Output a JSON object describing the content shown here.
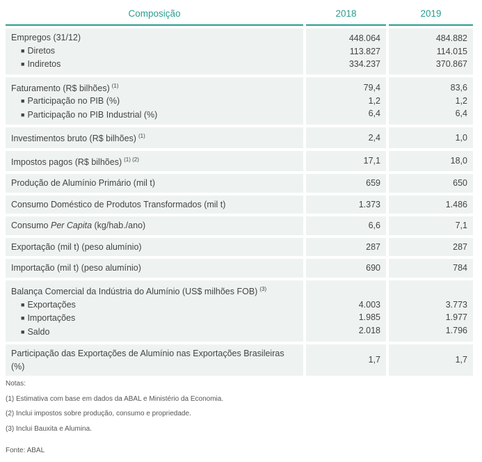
{
  "table": {
    "header": [
      "Composição",
      "2018",
      "2019"
    ],
    "rows": [
      {
        "lines": [
          {
            "label": "Empregos (31/12)",
            "values": [
              "448.064",
              "484.882"
            ]
          },
          {
            "label": "Diretos",
            "bullet": true,
            "values": [
              "113.827",
              "114.015"
            ]
          },
          {
            "label": "Indiretos",
            "bullet": true,
            "values": [
              "334.237",
              "370.867"
            ]
          }
        ]
      },
      {
        "lines": [
          {
            "label": "Faturamento (R$ bilhões)",
            "sup": "(1)",
            "values": [
              "79,4",
              "83,6"
            ]
          },
          {
            "label": "Participação no PIB (%)",
            "bullet": true,
            "values": [
              "1,2",
              "1,2"
            ]
          },
          {
            "label": "Participação no PIB Industrial (%)",
            "bullet": true,
            "values": [
              "6,4",
              "6,4"
            ]
          }
        ]
      },
      {
        "lines": [
          {
            "label": "Investimentos bruto (R$ bilhões)",
            "sup": "(1)",
            "values": [
              "2,4",
              "1,0"
            ]
          }
        ]
      },
      {
        "lines": [
          {
            "label": "Impostos pagos (R$ bilhões)",
            "sup": "(1) (2)",
            "values": [
              "17,1",
              "18,0"
            ]
          }
        ]
      },
      {
        "lines": [
          {
            "label": "Produção de Alumínio Primário (mil t)",
            "values": [
              "659",
              "650"
            ]
          }
        ]
      },
      {
        "lines": [
          {
            "label": "Consumo Doméstico de Produtos Transformados (mil t)",
            "values": [
              "1.373",
              "1.486"
            ]
          }
        ]
      },
      {
        "lines": [
          {
            "label": "Consumo ",
            "italic": "Per Capita",
            "after": " (kg/hab./ano)",
            "values": [
              "6,6",
              "7,1"
            ]
          }
        ]
      },
      {
        "lines": [
          {
            "label": "Exportação (mil t) (peso alumínio)",
            "values": [
              "287",
              "287"
            ]
          }
        ]
      },
      {
        "lines": [
          {
            "label": "Importação (mil t) (peso alumínio)",
            "values": [
              "690",
              "784"
            ]
          }
        ]
      },
      {
        "lines": [
          {
            "label": "Balança Comercial da Indústria do Alumínio (US$ milhões FOB)",
            "sup": "(3)",
            "values": null
          },
          {
            "label": "Exportações",
            "bullet": true,
            "values": [
              "4.003",
              "3.773"
            ]
          },
          {
            "label": "Importações",
            "bullet": true,
            "values": [
              "1.985",
              "1.977"
            ]
          },
          {
            "label": "Saldo",
            "bullet": true,
            "values": [
              "2.018",
              "1.796"
            ]
          }
        ]
      },
      {
        "lines": [
          {
            "label": "Participação das Exportações de Alumínio nas Exportações Brasileiras (%)",
            "values": [
              "1,7",
              "1,7"
            ]
          }
        ]
      }
    ]
  },
  "notes": {
    "title": "Notas:",
    "items": [
      "(1) Estimativa com base em dados da ABAL e Ministério da Economia.",
      "(2) Inclui impostos sobre produção, consumo e propriedade.",
      "(3) Inclui Bauxita e Alumina."
    ],
    "source": "Fonte: ABAL"
  }
}
